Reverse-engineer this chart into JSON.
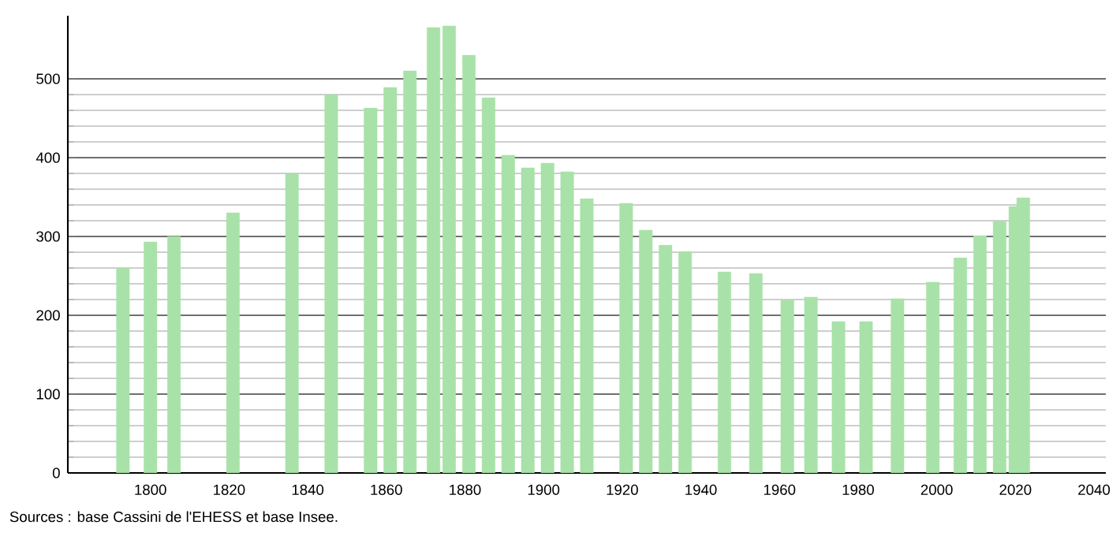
{
  "chart_data": {
    "type": "bar",
    "x": [
      1793,
      1800,
      1806,
      1821,
      1836,
      1846,
      1856,
      1861,
      1866,
      1872,
      1876,
      1881,
      1886,
      1891,
      1896,
      1901,
      1906,
      1911,
      1921,
      1926,
      1931,
      1936,
      1946,
      1954,
      1962,
      1968,
      1975,
      1982,
      1990,
      1999,
      2006,
      2011,
      2016,
      2020,
      2022
    ],
    "values": [
      260,
      293,
      300,
      330,
      380,
      480,
      463,
      489,
      510,
      565,
      567,
      530,
      476,
      403,
      387,
      393,
      382,
      348,
      342,
      308,
      289,
      281,
      255,
      253,
      219,
      223,
      192,
      192,
      221,
      242,
      273,
      301,
      319,
      338,
      349
    ],
    "color": "#a8e2a8",
    "xlim": [
      1779,
      2043
    ],
    "ylim": [
      0,
      580
    ],
    "xticks": [
      1800,
      1820,
      1840,
      1860,
      1880,
      1900,
      1920,
      1940,
      1960,
      1980,
      2000,
      2020,
      2040
    ],
    "yticks": [
      0,
      100,
      200,
      300,
      400,
      500
    ],
    "grid": "y",
    "annotations": [
      "Sources : base Cassini de l'EHESS et base Insee."
    ]
  }
}
